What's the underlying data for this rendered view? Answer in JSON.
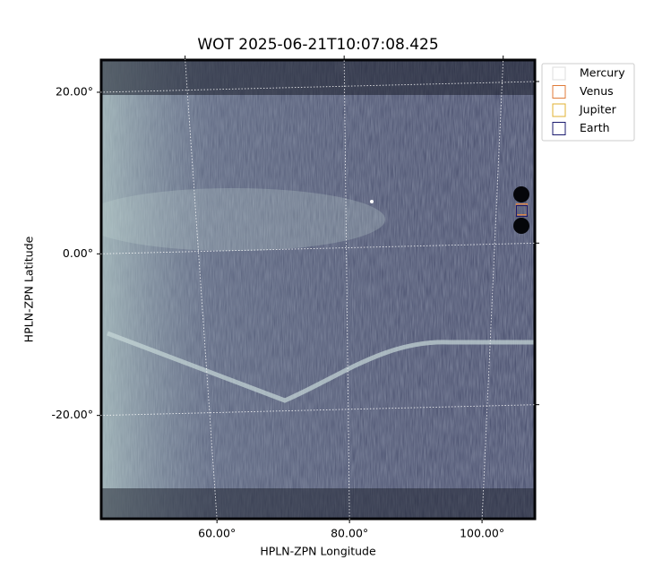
{
  "chart_data": {
    "type": "image",
    "title": "WOT 2025-06-21T10:07:08.425",
    "xlabel": "HPLN-ZPN Longitude",
    "ylabel": "HPLN-ZPN Latitude",
    "xlim": [
      42.4,
      108.1
    ],
    "ylim": [
      -32.9,
      24.1
    ],
    "xticks": [
      {
        "value": 60,
        "label": "60.00°"
      },
      {
        "value": 80,
        "label": "80.00°"
      },
      {
        "value": 100,
        "label": "100.00°"
      }
    ],
    "yticks": [
      {
        "value": 20,
        "label": "20.00°"
      },
      {
        "value": 0,
        "label": "0.00°"
      },
      {
        "value": -20,
        "label": "-20.00°"
      }
    ],
    "grid": true,
    "legend": "upper right outside",
    "series": [
      {
        "name": "Mercury",
        "color": "#dddddd",
        "x": [
          106
        ],
        "values": [
          5.5
        ]
      },
      {
        "name": "Venus",
        "color": "#e07b39",
        "x": [
          106
        ],
        "values": [
          5.5
        ]
      },
      {
        "name": "Jupiter",
        "color": "#e0b030",
        "x": [
          106
        ],
        "values": [
          5.3
        ]
      },
      {
        "name": "Earth",
        "color": "#1a1a6e",
        "x": [
          106
        ],
        "values": [
          5.3
        ]
      }
    ]
  }
}
